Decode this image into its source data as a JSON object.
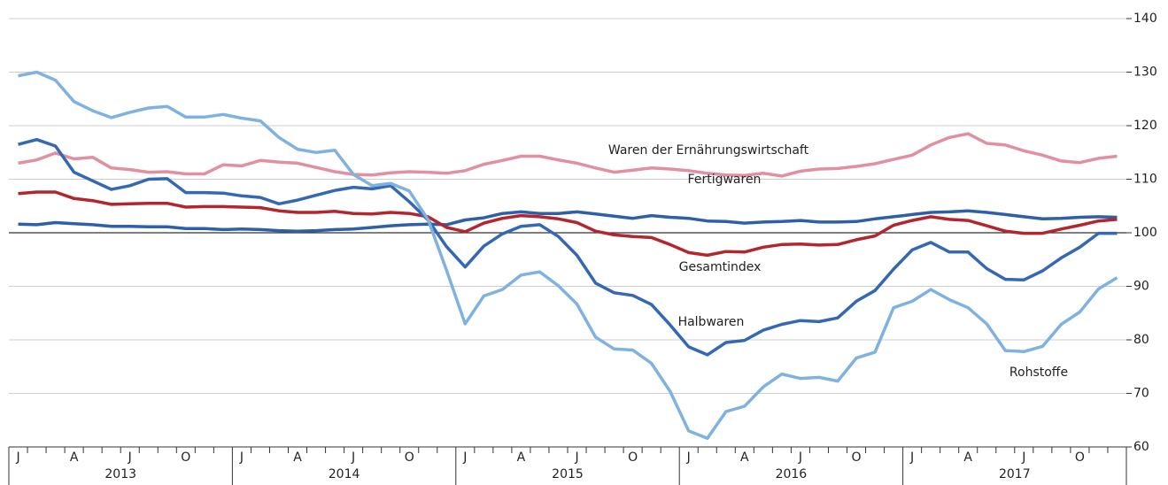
{
  "chart_data": {
    "type": "line",
    "categories": [
      "J",
      null,
      null,
      "A",
      null,
      null,
      "J",
      null,
      null,
      "O",
      null,
      null,
      "J",
      null,
      null,
      "A",
      null,
      null,
      "J",
      null,
      null,
      "O",
      null,
      null,
      "J",
      null,
      null,
      "A",
      null,
      null,
      "J",
      null,
      null,
      "O",
      null,
      null,
      "J",
      null,
      null,
      "A",
      null,
      null,
      "J",
      null,
      null,
      "O",
      null,
      null,
      "J",
      null,
      null,
      "A",
      null,
      null,
      "J",
      null,
      null,
      "O",
      null,
      null
    ],
    "years": [
      "2013",
      "2014",
      "2015",
      "2016",
      "2017"
    ],
    "ylim": [
      60,
      140
    ],
    "yticks": [
      60,
      70,
      80,
      90,
      100,
      110,
      120,
      130,
      140
    ],
    "grid": true,
    "reference_line": 100,
    "series": [
      {
        "name": "Waren der Ernährungswirtschaft",
        "color": "#e0909f",
        "values": [
          113,
          113.6,
          114.9,
          113.8,
          114.1,
          112.1,
          111.8,
          111.3,
          111.4,
          111,
          111,
          112.7,
          112.5,
          113.5,
          113.2,
          113,
          112.2,
          111.4,
          110.9,
          110.8,
          111.2,
          111.4,
          111.3,
          111.1,
          111.6,
          112.8,
          113.5,
          114.3,
          114.3,
          113.6,
          113,
          112.1,
          111.3,
          111.7,
          112.1,
          111.9,
          111.6,
          111.1,
          110.8,
          110.7,
          111.1,
          110.6,
          111.5,
          111.9,
          112,
          112.4,
          112.9,
          113.7,
          114.5,
          116.4,
          117.8,
          118.5,
          116.7,
          116.4,
          115.3,
          114.5,
          113.4,
          113.1,
          113.9,
          114.3
        ]
      },
      {
        "name": "Fertigwaren",
        "color": "#2f5fa8",
        "values": [
          101.6,
          101.5,
          101.9,
          101.7,
          101.5,
          101.2,
          101.2,
          101.1,
          101.1,
          100.8,
          100.8,
          100.6,
          100.7,
          100.6,
          100.4,
          100.3,
          100.4,
          100.6,
          100.7,
          101,
          101.3,
          101.5,
          101.6,
          101.5,
          102.4,
          102.8,
          103.6,
          103.9,
          103.6,
          103.6,
          103.9,
          103.5,
          103.1,
          102.7,
          103.2,
          102.9,
          102.7,
          102.2,
          102.1,
          101.8,
          102,
          102.1,
          102.3,
          102,
          102,
          102.1,
          102.6,
          103,
          103.4,
          103.8,
          103.9,
          104.1,
          103.8,
          103.4,
          103,
          102.6,
          102.7,
          102.9,
          103,
          102.9
        ]
      },
      {
        "name": "Gesamtindex",
        "color": "#b3262d",
        "values": [
          107.3,
          107.6,
          107.6,
          106.4,
          106,
          105.3,
          105.4,
          105.5,
          105.5,
          104.8,
          104.9,
          104.9,
          104.8,
          104.7,
          104.1,
          103.8,
          103.8,
          104,
          103.6,
          103.5,
          103.8,
          103.6,
          103,
          101,
          100.2,
          101.8,
          102.7,
          103.2,
          103,
          102.6,
          101.9,
          100.3,
          99.6,
          99.3,
          99.1,
          97.8,
          96.3,
          95.8,
          96.5,
          96.4,
          97.3,
          97.8,
          97.9,
          97.7,
          97.8,
          98.7,
          99.4,
          101.4,
          102.3,
          103,
          102.5,
          102.3,
          101.3,
          100.3,
          99.9,
          99.9,
          100.7,
          101.4,
          102.2,
          102.5
        ]
      },
      {
        "name": "Halbwaren",
        "color": "#3468b4",
        "values": [
          116.5,
          117.4,
          116.2,
          111.3,
          109.7,
          108.1,
          108.8,
          110,
          110.1,
          107.5,
          107.5,
          107.4,
          106.9,
          106.6,
          105.4,
          106.1,
          107,
          107.9,
          108.5,
          108.2,
          108.8,
          105.8,
          102.4,
          97.4,
          93.6,
          97.5,
          99.8,
          101.2,
          101.5,
          99.3,
          95.8,
          90.6,
          88.8,
          88.3,
          86.6,
          82.8,
          78.7,
          77.2,
          79.5,
          79.9,
          81.8,
          82.9,
          83.6,
          83.4,
          84.1,
          87.2,
          89.2,
          93.2,
          96.8,
          98.2,
          96.4,
          96.4,
          93.3,
          91.3,
          91.2,
          92.9,
          95.3,
          97.3,
          99.9,
          99.9
        ]
      },
      {
        "name": "Rohstoffe",
        "color": "#7fb2e0",
        "values": [
          129.3,
          130,
          128.5,
          124.5,
          122.8,
          121.5,
          122.5,
          123.3,
          123.6,
          121.6,
          121.6,
          122.1,
          121.4,
          120.9,
          117.8,
          115.6,
          115,
          115.4,
          110.9,
          108.8,
          109.2,
          107.8,
          102.5,
          93,
          83,
          88.2,
          89.4,
          92.1,
          92.7,
          90.1,
          86.7,
          80.5,
          78.3,
          78.1,
          75.6,
          70.4,
          63,
          61.6,
          66.6,
          67.6,
          71.2,
          73.6,
          72.8,
          73,
          72.3,
          76.6,
          77.7,
          86,
          87.2,
          89.4,
          87.5,
          86,
          83,
          78,
          77.8,
          78.8,
          82.9,
          85.2,
          89.5,
          91.6
        ]
      }
    ]
  }
}
